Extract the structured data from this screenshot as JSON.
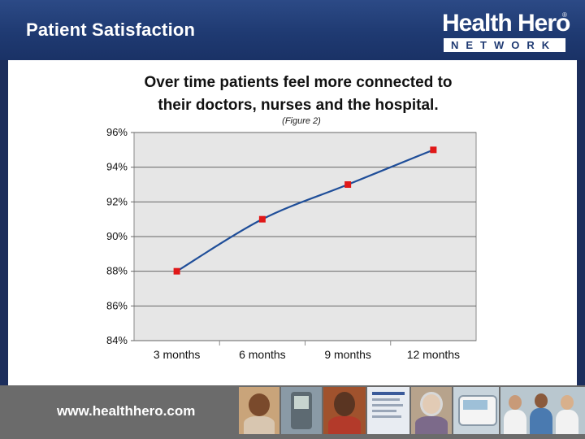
{
  "header": {
    "title": "Patient Satisfaction",
    "logo_top": "Health Hero",
    "logo_reg": "®",
    "logo_bottom": "NETWORK"
  },
  "chart_data": {
    "type": "line",
    "title_line1": "Over time patients feel more connected to",
    "title_line2": "their doctors, nurses and the hospital.",
    "subtitle": "(Figure 2)",
    "categories": [
      "3 months",
      "6 months",
      "9 months",
      "12 months"
    ],
    "values": [
      88,
      91,
      93,
      95
    ],
    "ylim": [
      84,
      96
    ],
    "yticks": [
      84,
      86,
      88,
      90,
      92,
      94,
      96
    ],
    "ytick_labels": [
      "84%",
      "86%",
      "88%",
      "90%",
      "92%",
      "94%",
      "96%"
    ],
    "grid": true,
    "line_color": "#1f4e99",
    "marker_color": "#e01818",
    "plot_background": "#e6e6e6"
  },
  "footer": {
    "url": "www.healthhero.com"
  }
}
